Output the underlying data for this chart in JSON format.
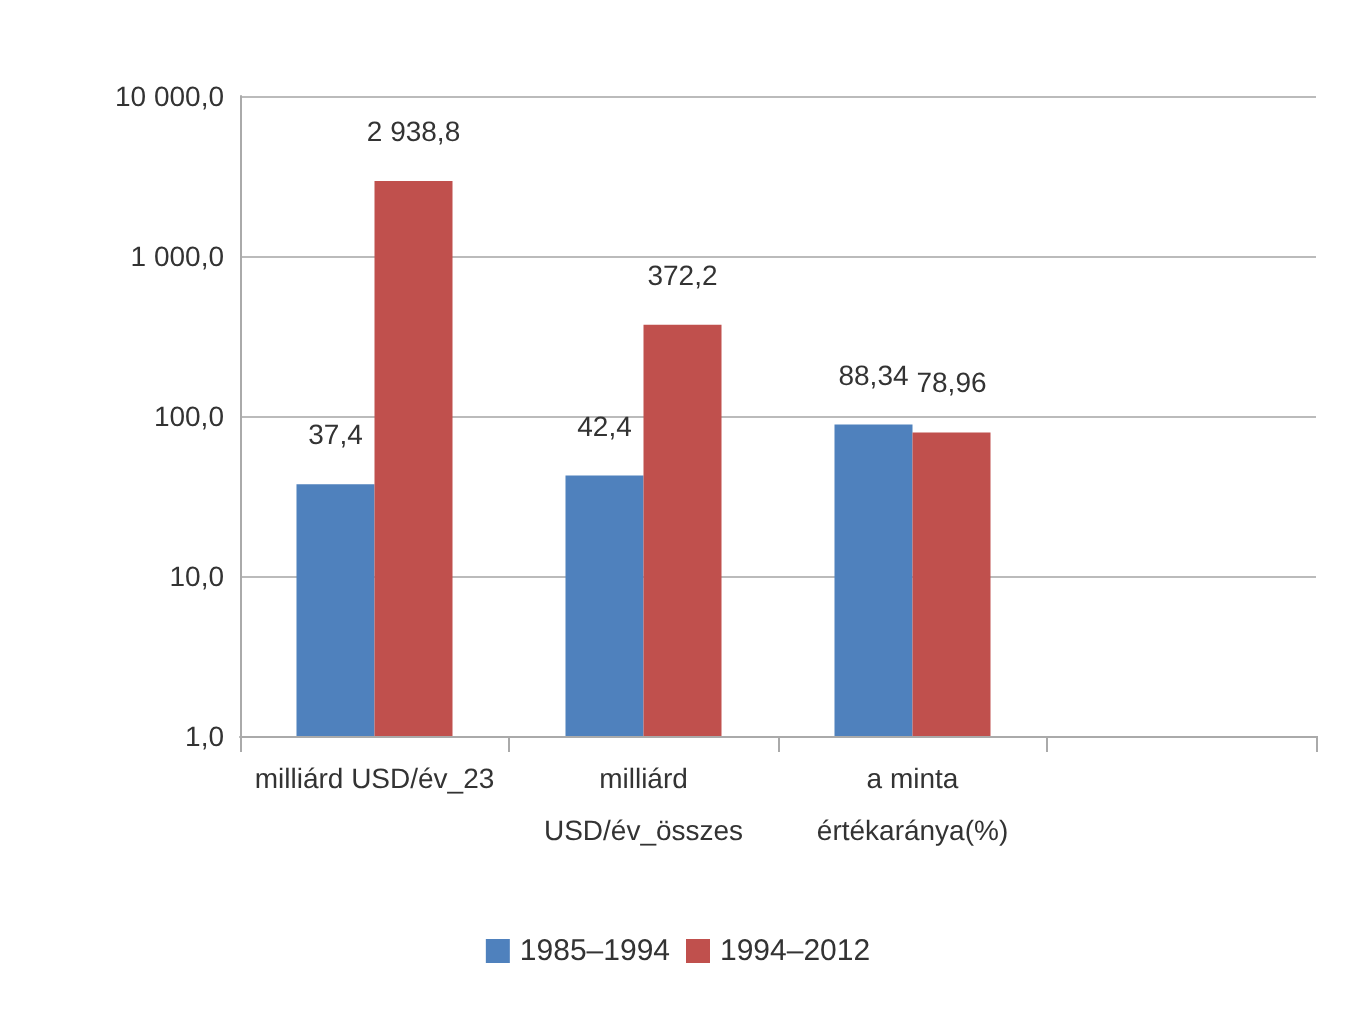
{
  "chart_data": {
    "type": "bar",
    "categories": [
      "milliárd USD/év_23",
      "milliárd\nUSD/év_összes",
      "a minta\nértékaránya(%)",
      null
    ],
    "series": [
      {
        "name": "1985–1994",
        "color": "#4f81bd",
        "values": [
          37.4,
          42.4,
          88.34,
          null
        ],
        "value_labels": [
          "37,4",
          "42,4",
          "88,34",
          null
        ]
      },
      {
        "name": "1994–2012",
        "color": "#c0504d",
        "values": [
          2938.8,
          372.2,
          78.96,
          null
        ],
        "value_labels": [
          "2 938,8",
          "372,2",
          "78,96",
          null
        ]
      }
    ],
    "log": "y",
    "ylim": [
      1,
      10000
    ],
    "yticks": [
      {
        "value": 1,
        "label": "1,0"
      },
      {
        "value": 10,
        "label": "10,0"
      },
      {
        "value": 100,
        "label": "100,0"
      },
      {
        "value": 1000,
        "label": "1 000,0"
      },
      {
        "value": 10000,
        "label": "10 000,0"
      }
    ],
    "grid": "y",
    "legend": "bottom"
  }
}
